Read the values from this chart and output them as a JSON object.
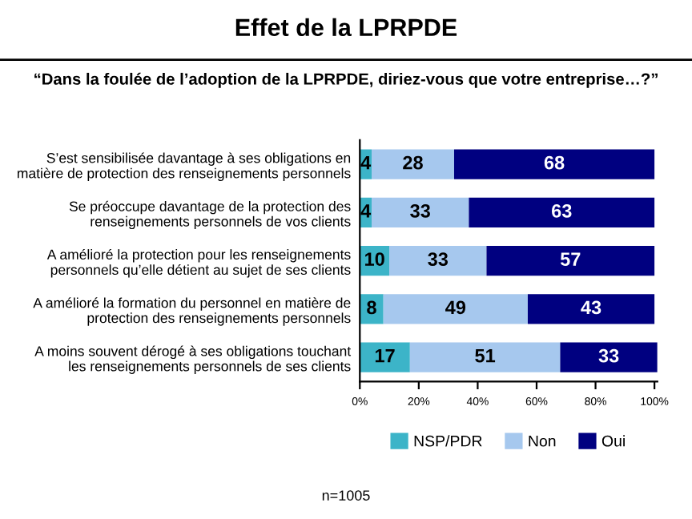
{
  "chart_data": {
    "type": "bar",
    "orientation": "horizontal",
    "stacked": true,
    "title": "Effet de la LPRPDE",
    "subtitle": "“Dans la foulée de l’adoption de la LPRPDE, diriez-vous que votre entreprise…?”",
    "categories": [
      "S’est sensibilisée davantage à ses obligations en\nmatière de protection des renseignements personnels",
      "Se préoccupe davantage de la protection des\nrenseignements personnels de vos clients",
      "A amélioré la protection pour les renseignements\npersonnels qu’elle détient au sujet de ses clients",
      "A amélioré la formation du personnel en matière de\nprotection des renseignements personnels",
      "A moins souvent dérogé à ses obligations touchant\nles renseignements personnels de ses clients"
    ],
    "series": [
      {
        "name": "NSP/PDR",
        "color": "#3cb4c8",
        "values": [
          4,
          4,
          10,
          8,
          17
        ]
      },
      {
        "name": "Non",
        "color": "#a6c8ee",
        "values": [
          28,
          33,
          33,
          49,
          51
        ]
      },
      {
        "name": "Oui",
        "color": "#000080",
        "values": [
          68,
          63,
          57,
          43,
          33
        ]
      }
    ],
    "xlim": [
      0,
      101
    ],
    "xticks": [
      {
        "value": 0,
        "label": "0%"
      },
      {
        "value": 20,
        "label": "20%"
      },
      {
        "value": 40,
        "label": "40%"
      },
      {
        "value": 60,
        "label": "60%"
      },
      {
        "value": 80,
        "label": "80%"
      },
      {
        "value": 100,
        "label": "100%"
      }
    ],
    "data_labels": true,
    "grid": false,
    "legend": "bottom",
    "annotations": [
      "n=1005"
    ]
  }
}
